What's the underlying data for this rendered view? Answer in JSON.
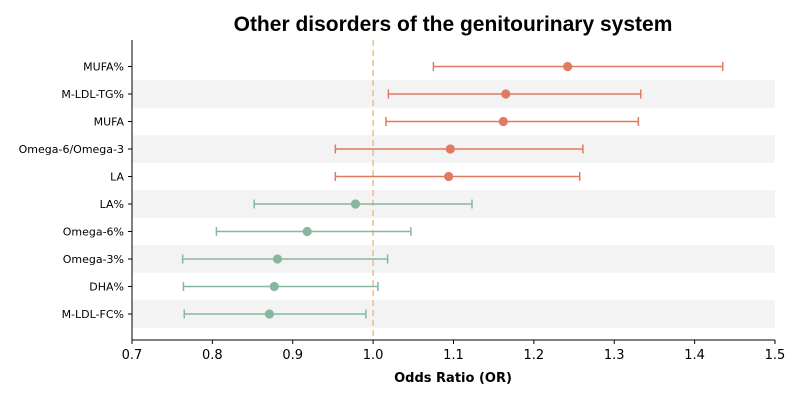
{
  "chart_data": {
    "type": "forest",
    "title": "Other disorders of the genitourinary system",
    "xlabel": "Odds Ratio (OR)",
    "ylabel": "",
    "xlim": [
      0.7,
      1.5
    ],
    "x_ticks": [
      "0.7",
      "0.8",
      "0.9",
      "1.0",
      "1.1",
      "1.2",
      "1.3",
      "1.4",
      "1.5"
    ],
    "reference_line": 1.0,
    "categories": [
      "MUFA%",
      "M-LDL-TG%",
      "MUFA",
      "Omega-6/Omega-3",
      "LA",
      "LA%",
      "Omega-6%",
      "Omega-3%",
      "DHA%",
      "M-LDL-FC%"
    ],
    "or": [
      1.242,
      1.165,
      1.162,
      1.096,
      1.094,
      0.978,
      0.918,
      0.881,
      0.877,
      0.871
    ],
    "ci_lower": [
      1.075,
      1.019,
      1.016,
      0.953,
      0.953,
      0.852,
      0.805,
      0.763,
      0.764,
      0.765
    ],
    "ci_upper": [
      1.435,
      1.333,
      1.33,
      1.261,
      1.257,
      1.123,
      1.047,
      1.018,
      1.006,
      0.991
    ],
    "colors": {
      "risk": "#e07a60",
      "protective": "#86b8a0",
      "reference": "#f0c08a",
      "band": "#f3f3f3"
    }
  }
}
